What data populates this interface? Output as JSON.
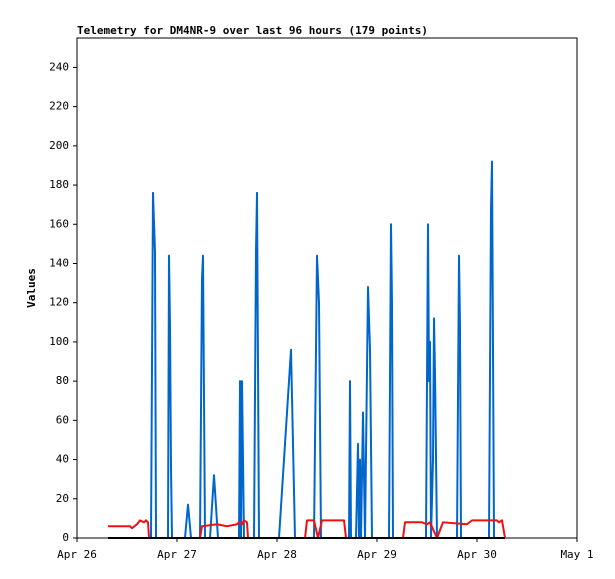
{
  "chart_data": {
    "type": "line",
    "title": "Telemetry for DM4NR-9 over last 96 hours (179 points)",
    "y_label": "Values",
    "xlim": [
      0,
      5
    ],
    "xticks": [
      {
        "value": 0,
        "label": "Apr 26"
      },
      {
        "value": 1,
        "label": "Apr 27"
      },
      {
        "value": 2,
        "label": "Apr 28"
      },
      {
        "value": 3,
        "label": "Apr 29"
      },
      {
        "value": 4,
        "label": "Apr 30"
      },
      {
        "value": 5,
        "label": "May 1"
      }
    ],
    "ylim": [
      0,
      255
    ],
    "yticks": [
      0,
      20,
      40,
      60,
      80,
      100,
      120,
      140,
      160,
      180,
      200,
      220,
      240
    ],
    "grid": false,
    "series": [
      {
        "color": "#0066cc",
        "x": [
          0.74,
          0.76,
          0.78,
          0.79,
          0.91,
          0.92,
          0.93,
          0.94,
          0.95,
          1.08,
          1.11,
          1.14,
          1.23,
          1.25,
          1.26,
          1.28,
          1.33,
          1.37,
          1.41,
          1.62,
          1.63,
          1.64,
          1.65,
          1.66,
          1.67,
          1.77,
          1.79,
          1.8,
          1.82,
          2.02,
          2.14,
          2.18,
          2.37,
          2.4,
          2.42,
          2.44,
          2.72,
          2.73,
          2.74,
          2.79,
          2.81,
          2.82,
          2.83,
          2.84,
          2.86,
          2.88,
          2.91,
          2.93,
          2.95,
          3.12,
          3.14,
          3.15,
          3.16,
          3.49,
          3.51,
          3.52,
          3.53,
          3.54,
          3.56,
          3.57,
          3.58,
          3.6,
          3.8,
          3.82,
          3.83,
          3.84,
          4.12,
          4.14,
          4.15,
          4.17
        ],
        "values": [
          0,
          176,
          146,
          0,
          0,
          144,
          108,
          36,
          0,
          0,
          17,
          0,
          0,
          132,
          144,
          0,
          0,
          32,
          0,
          0,
          80,
          0,
          80,
          40,
          0,
          0,
          146,
          176,
          0,
          0,
          96,
          0,
          0,
          144,
          120,
          0,
          0,
          80,
          0,
          0,
          48,
          0,
          40,
          0,
          64,
          0,
          128,
          96,
          0,
          0,
          160,
          120,
          0,
          0,
          160,
          80,
          100,
          0,
          40,
          112,
          84,
          0,
          0,
          144,
          108,
          0,
          0,
          168,
          192,
          0
        ]
      },
      {
        "color": "#ee1111",
        "x": [
          0.31,
          0.53,
          0.55,
          0.6,
          0.63,
          0.67,
          0.69,
          0.71,
          0.72,
          1.23,
          1.25,
          1.4,
          1.5,
          1.6,
          1.62,
          1.65,
          1.67,
          1.7,
          1.71,
          2.28,
          2.3,
          2.37,
          2.41,
          2.45,
          2.67,
          2.69,
          3.26,
          3.28,
          3.45,
          3.5,
          3.53,
          3.6,
          3.66,
          3.9,
          3.95,
          4.2,
          4.22,
          4.25,
          4.28
        ],
        "values": [
          6,
          6,
          5,
          7,
          9,
          8,
          9,
          8,
          0,
          0,
          6,
          7,
          6,
          7,
          8,
          7,
          9,
          8,
          0,
          0,
          9,
          9,
          0,
          9,
          9,
          0,
          0,
          8,
          8,
          7,
          8,
          0,
          8,
          7,
          9,
          9,
          8,
          9,
          0
        ]
      },
      {
        "color": "#000000",
        "x": [
          0.31,
          4.28
        ],
        "values": [
          0,
          0
        ]
      }
    ]
  }
}
